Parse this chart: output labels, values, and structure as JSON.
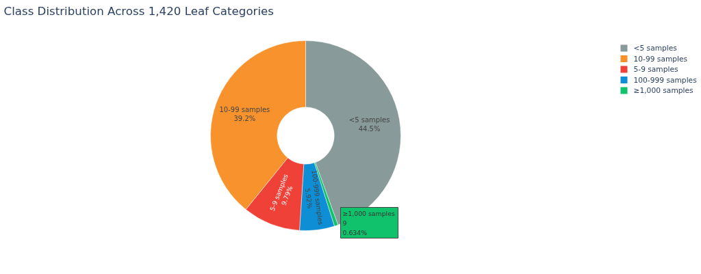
{
  "chart_data": {
    "type": "donut",
    "title": "Class Distribution Across 1,420 Leaf Categories",
    "categories": [
      "<5 samples",
      "≥1,000 samples",
      "100-999 samples",
      "5-9 samples",
      "10-99 samples"
    ],
    "values": [
      44.5,
      0.634,
      5.92,
      9.79,
      39.2
    ],
    "colors": [
      "#889a99",
      "#0fc26b",
      "#0e8ed5",
      "#ef4138",
      "#f7922c"
    ],
    "value_labels": [
      "<5 samples\n44.5%",
      null,
      "100-999 samples\n5.92%",
      "5-9 samples\n9.79%",
      "10-99 samples\n39.2%"
    ],
    "annotations": [
      "≥1,000 samples\n9\n0.634%"
    ],
    "legend": "top right"
  }
}
